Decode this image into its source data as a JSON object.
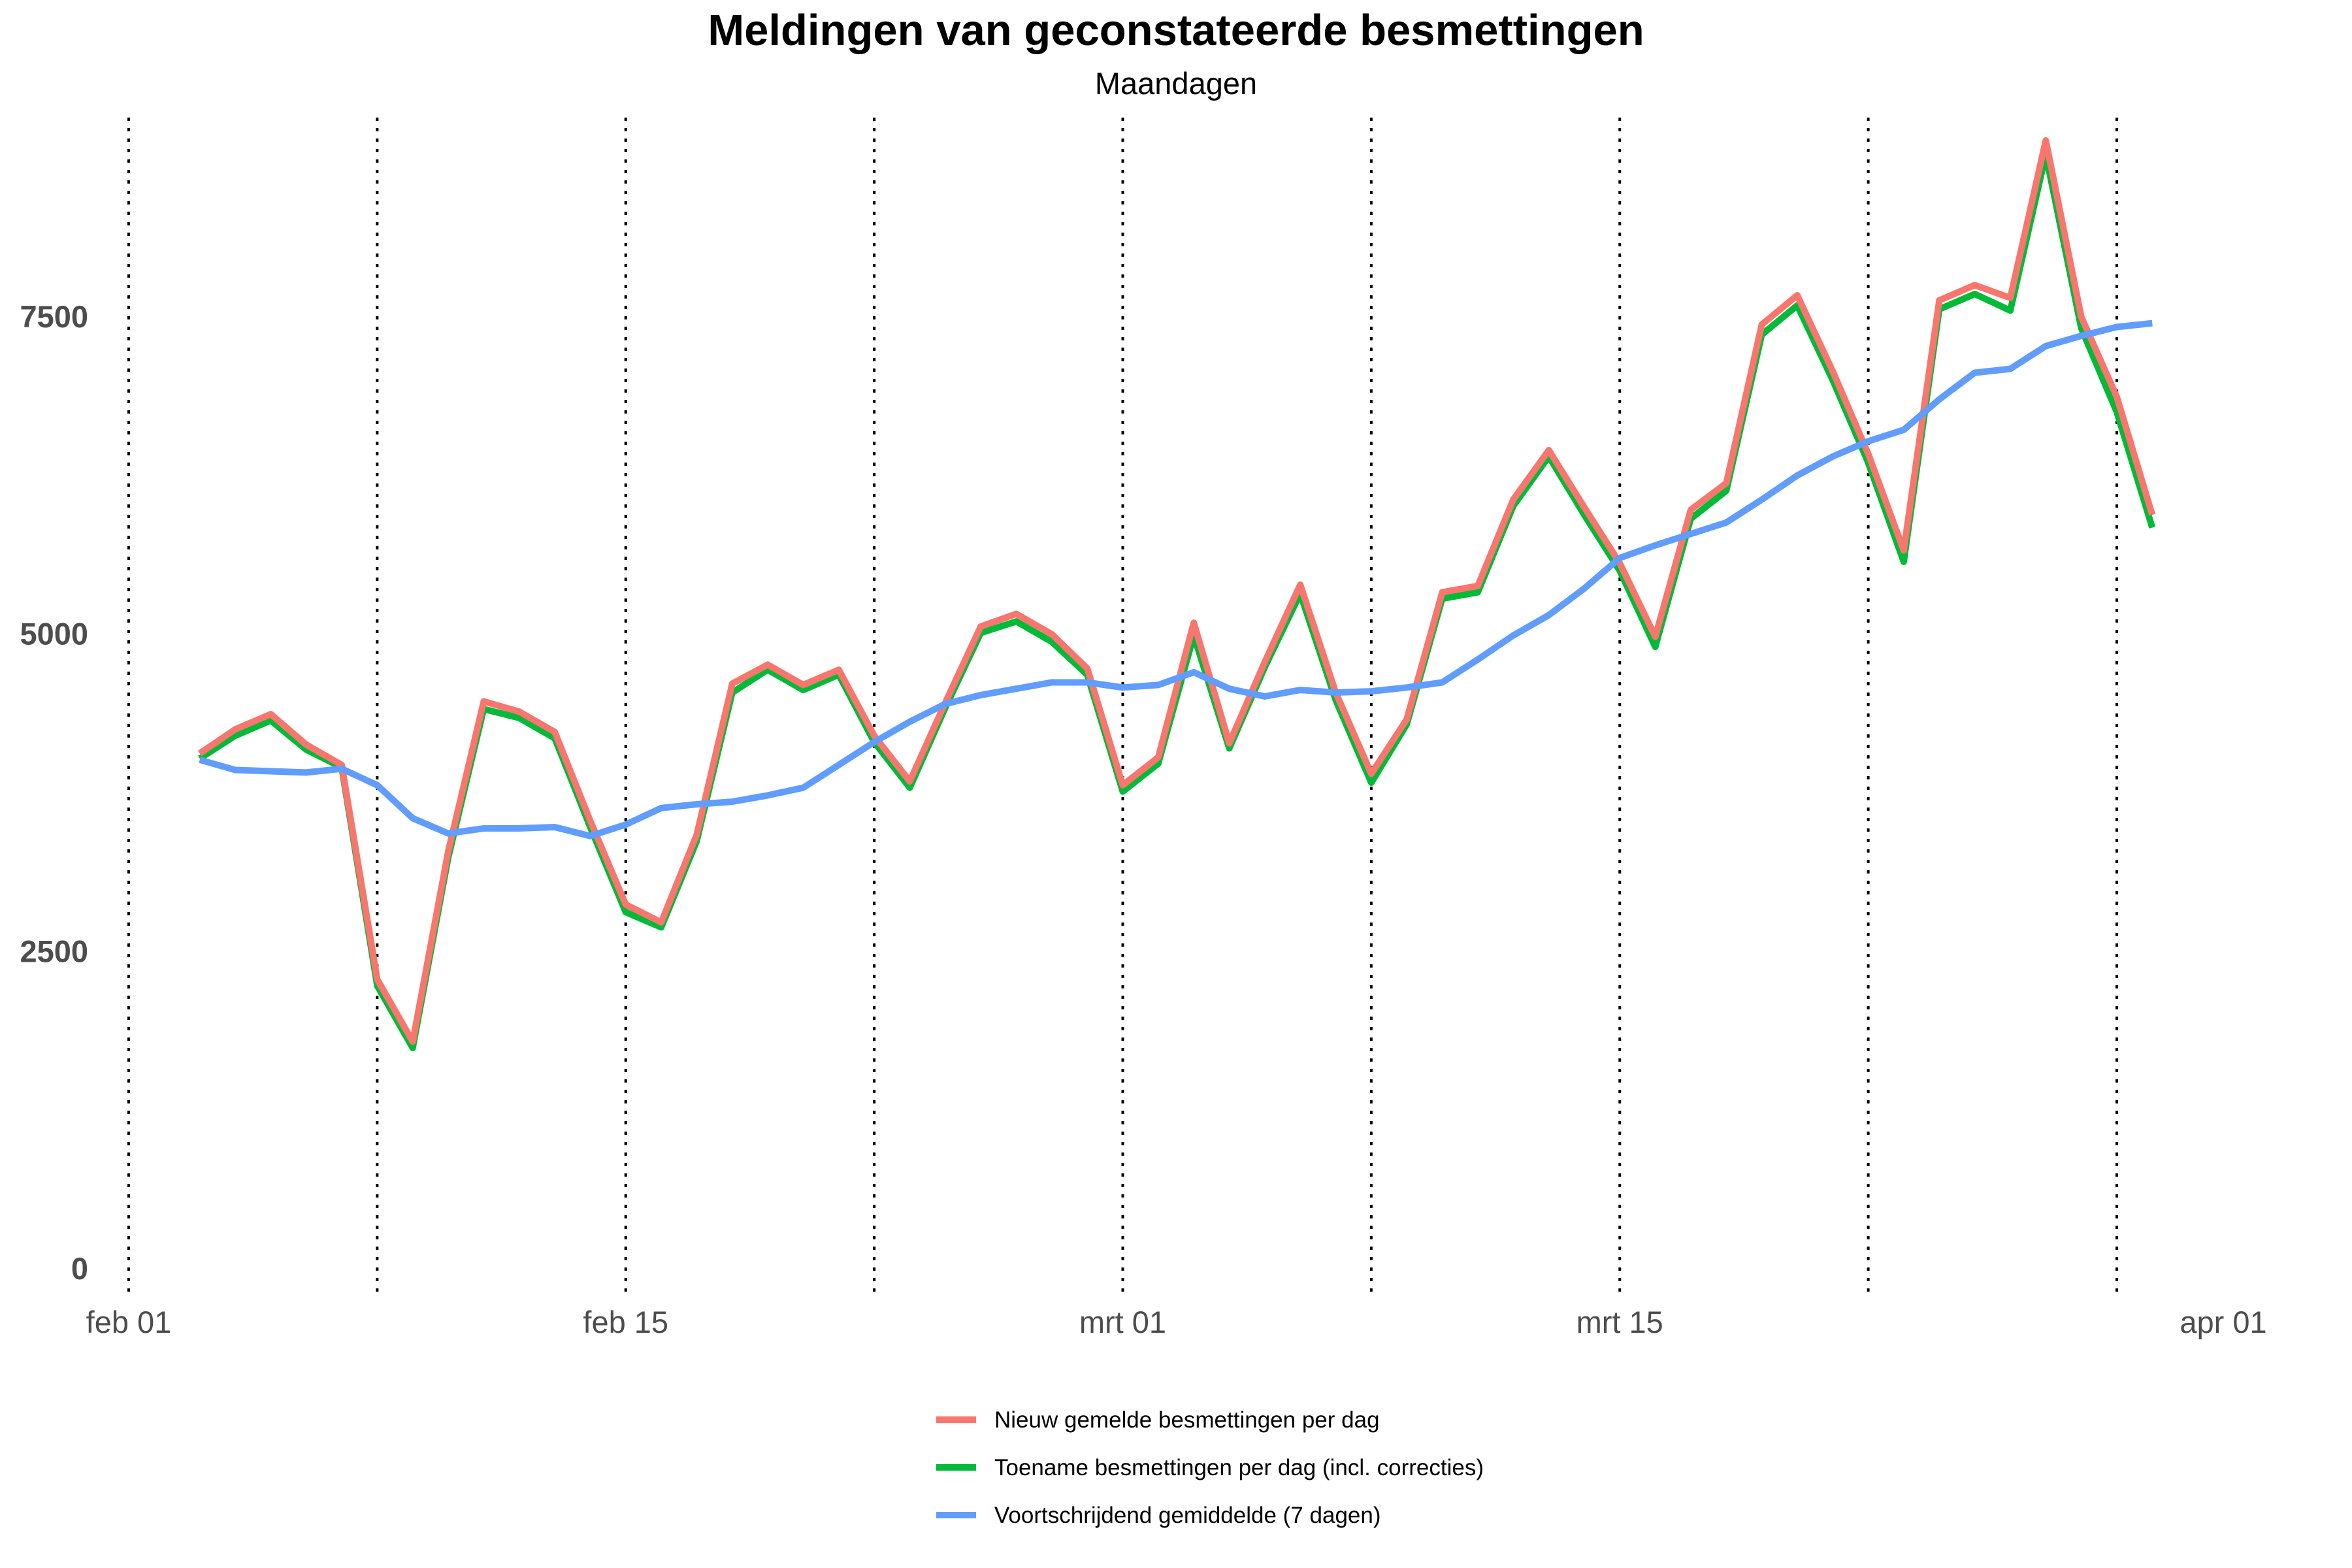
{
  "chart_data": {
    "type": "line",
    "title": "Meldingen van geconstateerde besmettingen",
    "subtitle": "Maandagen",
    "xlabel": "",
    "ylabel": "",
    "grid": false,
    "legend_position": "bottom",
    "x_range": [
      "2021-02-01",
      "2021-04-01"
    ],
    "ylim": [
      0,
      9000
    ],
    "y_ticks": [
      0,
      2500,
      5000,
      7500
    ],
    "y_tick_labels": [
      "0",
      "2500",
      "5000",
      "7500"
    ],
    "x_ticks": [
      "2021-02-01",
      "2021-02-15",
      "2021-03-01",
      "2021-03-15",
      "2021-04-01"
    ],
    "x_tick_labels": [
      "feb 01",
      "feb 15",
      "mrt 01",
      "mrt 15",
      "apr 01"
    ],
    "vertical_reference_lines": [
      "2021-02-01",
      "2021-02-08",
      "2021-02-15",
      "2021-02-22",
      "2021-03-01",
      "2021-03-08",
      "2021-03-15",
      "2021-03-22",
      "2021-03-29"
    ],
    "dates": [
      "2021-02-03",
      "2021-02-04",
      "2021-02-05",
      "2021-02-06",
      "2021-02-07",
      "2021-02-08",
      "2021-02-09",
      "2021-02-10",
      "2021-02-11",
      "2021-02-12",
      "2021-02-13",
      "2021-02-14",
      "2021-02-15",
      "2021-02-16",
      "2021-02-17",
      "2021-02-18",
      "2021-02-19",
      "2021-02-20",
      "2021-02-21",
      "2021-02-22",
      "2021-02-23",
      "2021-02-24",
      "2021-02-25",
      "2021-02-26",
      "2021-02-27",
      "2021-02-28",
      "2021-03-01",
      "2021-03-02",
      "2021-03-03",
      "2021-03-04",
      "2021-03-05",
      "2021-03-06",
      "2021-03-07",
      "2021-03-08",
      "2021-03-09",
      "2021-03-10",
      "2021-03-11",
      "2021-03-12",
      "2021-03-13",
      "2021-03-14",
      "2021-03-15",
      "2021-03-16",
      "2021-03-17",
      "2021-03-18",
      "2021-03-19",
      "2021-03-20",
      "2021-03-21",
      "2021-03-22",
      "2021-03-23",
      "2021-03-24",
      "2021-03-25",
      "2021-03-26",
      "2021-03-27",
      "2021-03-28",
      "2021-03-29",
      "2021-03-30"
    ],
    "series": [
      {
        "name": "Nieuw gemelde besmettingen per dag",
        "color": "#f8766d",
        "values": [
          4060,
          4250,
          4370,
          4130,
          3970,
          2280,
          1790,
          3290,
          4470,
          4390,
          4230,
          3530,
          2870,
          2730,
          3420,
          4610,
          4760,
          4600,
          4720,
          4200,
          3840,
          4460,
          5060,
          5160,
          5000,
          4730,
          3810,
          4030,
          5090,
          4140,
          4780,
          5390,
          4540,
          3900,
          4330,
          5330,
          5380,
          6060,
          6450,
          6000,
          5560,
          4980,
          5980,
          6190,
          7440,
          7670,
          7070,
          6420,
          5660,
          7630,
          7750,
          7650,
          8890,
          7500,
          6870,
          5940
        ]
      },
      {
        "name": "Toename besmettingen per dag (incl. correcties)",
        "color": "#00ba38",
        "values": [
          4020,
          4200,
          4320,
          4090,
          3950,
          2230,
          1740,
          3240,
          4410,
          4340,
          4180,
          3480,
          2810,
          2690,
          3370,
          4540,
          4720,
          4560,
          4680,
          4150,
          3790,
          4420,
          5010,
          5100,
          4940,
          4680,
          3760,
          3980,
          4990,
          4100,
          4740,
          5320,
          4480,
          3830,
          4290,
          5280,
          5330,
          6010,
          6400,
          5940,
          5500,
          4900,
          5910,
          6130,
          7360,
          7590,
          7000,
          6350,
          5570,
          7560,
          7680,
          7550,
          8780,
          7410,
          6750,
          5840
        ]
      },
      {
        "name": "Voortschrijdend gemiddelde (7 dagen)",
        "color": "#619cff",
        "values": [
          4010,
          3930,
          3920,
          3910,
          3940,
          3810,
          3550,
          3430,
          3470,
          3470,
          3480,
          3410,
          3500,
          3630,
          3660,
          3680,
          3730,
          3790,
          3970,
          4150,
          4310,
          4450,
          4520,
          4570,
          4620,
          4620,
          4580,
          4600,
          4700,
          4570,
          4510,
          4560,
          4540,
          4550,
          4580,
          4620,
          4800,
          4990,
          5150,
          5360,
          5600,
          5700,
          5790,
          5880,
          6060,
          6250,
          6400,
          6520,
          6610,
          6850,
          7060,
          7090,
          7270,
          7350,
          7420,
          7450
        ]
      }
    ]
  }
}
